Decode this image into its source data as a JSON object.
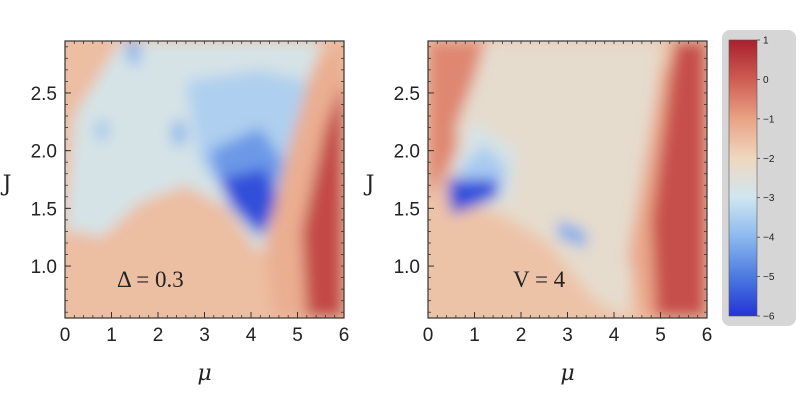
{
  "chart_data": [
    {
      "type": "heatmap",
      "title": "",
      "annotation": "Δ = 0.3",
      "xlabel": "μ",
      "ylabel": "J",
      "xlim": [
        0,
        6
      ],
      "ylim": [
        0.55,
        2.95
      ],
      "x_ticks": [
        "0",
        "1",
        "2",
        "3",
        "4",
        "5",
        "6"
      ],
      "y_ticks": [
        "1.0",
        "1.5",
        "2.0",
        "2.5"
      ],
      "x_tick_values": [
        0,
        1,
        2,
        3,
        4,
        5,
        6
      ],
      "y_tick_values": [
        1.0,
        1.5,
        2.0,
        2.5
      ],
      "grid": false,
      "regions": [
        {
          "level": -1.5,
          "shape": [
            [
              0,
              0.55
            ],
            [
              0,
              2.95
            ],
            [
              6,
              2.95
            ],
            [
              6,
              0.55
            ]
          ]
        },
        {
          "level": -2.8,
          "shape": [
            [
              0,
              1.3
            ],
            [
              0.2,
              2.3
            ],
            [
              1.2,
              2.95
            ],
            [
              5.5,
              2.95
            ],
            [
              5.0,
              2.2
            ],
            [
              4.5,
              1.4
            ],
            [
              4.2,
              1.1
            ],
            [
              3.5,
              1.5
            ],
            [
              2.6,
              1.7
            ],
            [
              1.6,
              1.55
            ],
            [
              0.8,
              1.25
            ],
            [
              0.3,
              1.3
            ]
          ]
        },
        {
          "level": -3.5,
          "shape": [
            [
              2.6,
              2.6
            ],
            [
              4.2,
              2.7
            ],
            [
              5.2,
              2.6
            ],
            [
              4.9,
              1.9
            ],
            [
              4.4,
              1.3
            ],
            [
              3.6,
              1.6
            ],
            [
              2.9,
              1.9
            ]
          ]
        },
        {
          "level": -4.5,
          "shape": [
            [
              3.1,
              2.0
            ],
            [
              4.2,
              2.2
            ],
            [
              4.7,
              1.9
            ],
            [
              4.3,
              1.3
            ],
            [
              3.7,
              1.6
            ],
            [
              3.2,
              1.8
            ]
          ]
        },
        {
          "level": -5.6,
          "shape": [
            [
              3.3,
              1.75
            ],
            [
              4.3,
              1.85
            ],
            [
              4.6,
              1.55
            ],
            [
              4.2,
              1.25
            ],
            [
              3.6,
              1.5
            ]
          ]
        },
        {
          "level": -4.2,
          "shape": [
            [
              1.3,
              2.95
            ],
            [
              1.6,
              2.95
            ],
            [
              1.6,
              2.75
            ],
            [
              1.4,
              2.75
            ]
          ]
        },
        {
          "level": -4.0,
          "shape": [
            [
              0.7,
              2.25
            ],
            [
              0.9,
              2.25
            ],
            [
              0.9,
              2.1
            ],
            [
              0.7,
              2.1
            ]
          ]
        },
        {
          "level": -4.0,
          "shape": [
            [
              2.3,
              2.25
            ],
            [
              2.6,
              2.25
            ],
            [
              2.6,
              2.05
            ],
            [
              2.3,
              2.05
            ]
          ]
        },
        {
          "level": -1.2,
          "shape": [
            [
              4.5,
              0.55
            ],
            [
              4.3,
              1.2
            ],
            [
              4.8,
              2.0
            ],
            [
              5.3,
              2.7
            ],
            [
              6,
              2.95
            ],
            [
              6,
              0.55
            ]
          ]
        },
        {
          "level": 0.3,
          "shape": [
            [
              5.2,
              0.55
            ],
            [
              5.1,
              1.3
            ],
            [
              5.6,
              2.2
            ],
            [
              6,
              2.6
            ],
            [
              6,
              0.55
            ]
          ]
        }
      ]
    },
    {
      "type": "heatmap",
      "title": "",
      "annotation": "V = 4",
      "xlabel": "μ",
      "ylabel": "J",
      "xlim": [
        0,
        6
      ],
      "ylim": [
        0.55,
        2.95
      ],
      "x_ticks": [
        "0",
        "1",
        "2",
        "3",
        "4",
        "5",
        "6"
      ],
      "y_ticks": [
        "1.0",
        "1.5",
        "2.0",
        "2.5"
      ],
      "x_tick_values": [
        0,
        1,
        2,
        3,
        4,
        5,
        6
      ],
      "y_tick_values": [
        1.0,
        1.5,
        2.0,
        2.5
      ],
      "grid": false,
      "regions": [
        {
          "level": -1.6,
          "shape": [
            [
              0,
              0.55
            ],
            [
              0,
              2.95
            ],
            [
              6,
              2.95
            ],
            [
              6,
              0.55
            ]
          ]
        },
        {
          "level": -0.6,
          "shape": [
            [
              0,
              1.6
            ],
            [
              0,
              2.95
            ],
            [
              1.2,
              2.95
            ],
            [
              0.8,
              2.3
            ],
            [
              0.5,
              1.9
            ]
          ]
        },
        {
          "level": -2.3,
          "shape": [
            [
              0.6,
              2.2
            ],
            [
              1.3,
              2.95
            ],
            [
              5.0,
              2.95
            ],
            [
              4.9,
              2.2
            ],
            [
              4.5,
              1.3
            ],
            [
              4.3,
              0.55
            ],
            [
              3.6,
              0.7
            ],
            [
              2.6,
              1.2
            ],
            [
              1.8,
              1.4
            ],
            [
              1.0,
              1.55
            ],
            [
              0.8,
              1.7
            ]
          ]
        },
        {
          "level": -2.8,
          "shape": [
            [
              0.5,
              1.85
            ],
            [
              1.0,
              2.25
            ],
            [
              1.9,
              2.0
            ],
            [
              1.8,
              1.6
            ],
            [
              1.1,
              1.5
            ]
          ]
        },
        {
          "level": -3.6,
          "shape": [
            [
              0.6,
              1.8
            ],
            [
              1.2,
              2.05
            ],
            [
              1.7,
              1.85
            ],
            [
              1.5,
              1.6
            ],
            [
              1.0,
              1.55
            ]
          ]
        },
        {
          "level": -5.6,
          "shape": [
            [
              0.4,
              1.75
            ],
            [
              1.5,
              1.75
            ],
            [
              1.5,
              1.6
            ],
            [
              0.9,
              1.5
            ],
            [
              0.5,
              1.45
            ]
          ]
        },
        {
          "level": -4.2,
          "shape": [
            [
              2.8,
              1.4
            ],
            [
              3.4,
              1.3
            ],
            [
              3.4,
              1.15
            ],
            [
              2.8,
              1.25
            ]
          ]
        },
        {
          "level": -1.1,
          "shape": [
            [
              4.6,
              0.55
            ],
            [
              4.3,
              1.1
            ],
            [
              4.7,
              2.0
            ],
            [
              5.0,
              2.7
            ],
            [
              6,
              2.95
            ],
            [
              6,
              0.55
            ]
          ]
        },
        {
          "level": 0.2,
          "shape": [
            [
              4.9,
              0.55
            ],
            [
              4.8,
              1.4
            ],
            [
              5.1,
              2.3
            ],
            [
              5.3,
              2.95
            ],
            [
              6,
              2.95
            ],
            [
              6,
              0.55
            ]
          ]
        }
      ]
    }
  ],
  "colorbar": {
    "min": -6,
    "max": 1,
    "tick_labels": [
      "1",
      "0",
      "−1",
      "−2",
      "−3",
      "−4",
      "−5",
      "−6"
    ],
    "tick_values": [
      1,
      0,
      -1,
      -2,
      -3,
      -4,
      -5,
      -6
    ],
    "colors": [
      "#2333d6",
      "#4c7ae0",
      "#8cb8ee",
      "#cfe6f0",
      "#efd8bf",
      "#e9a385",
      "#cf5c52",
      "#a8202e"
    ]
  }
}
